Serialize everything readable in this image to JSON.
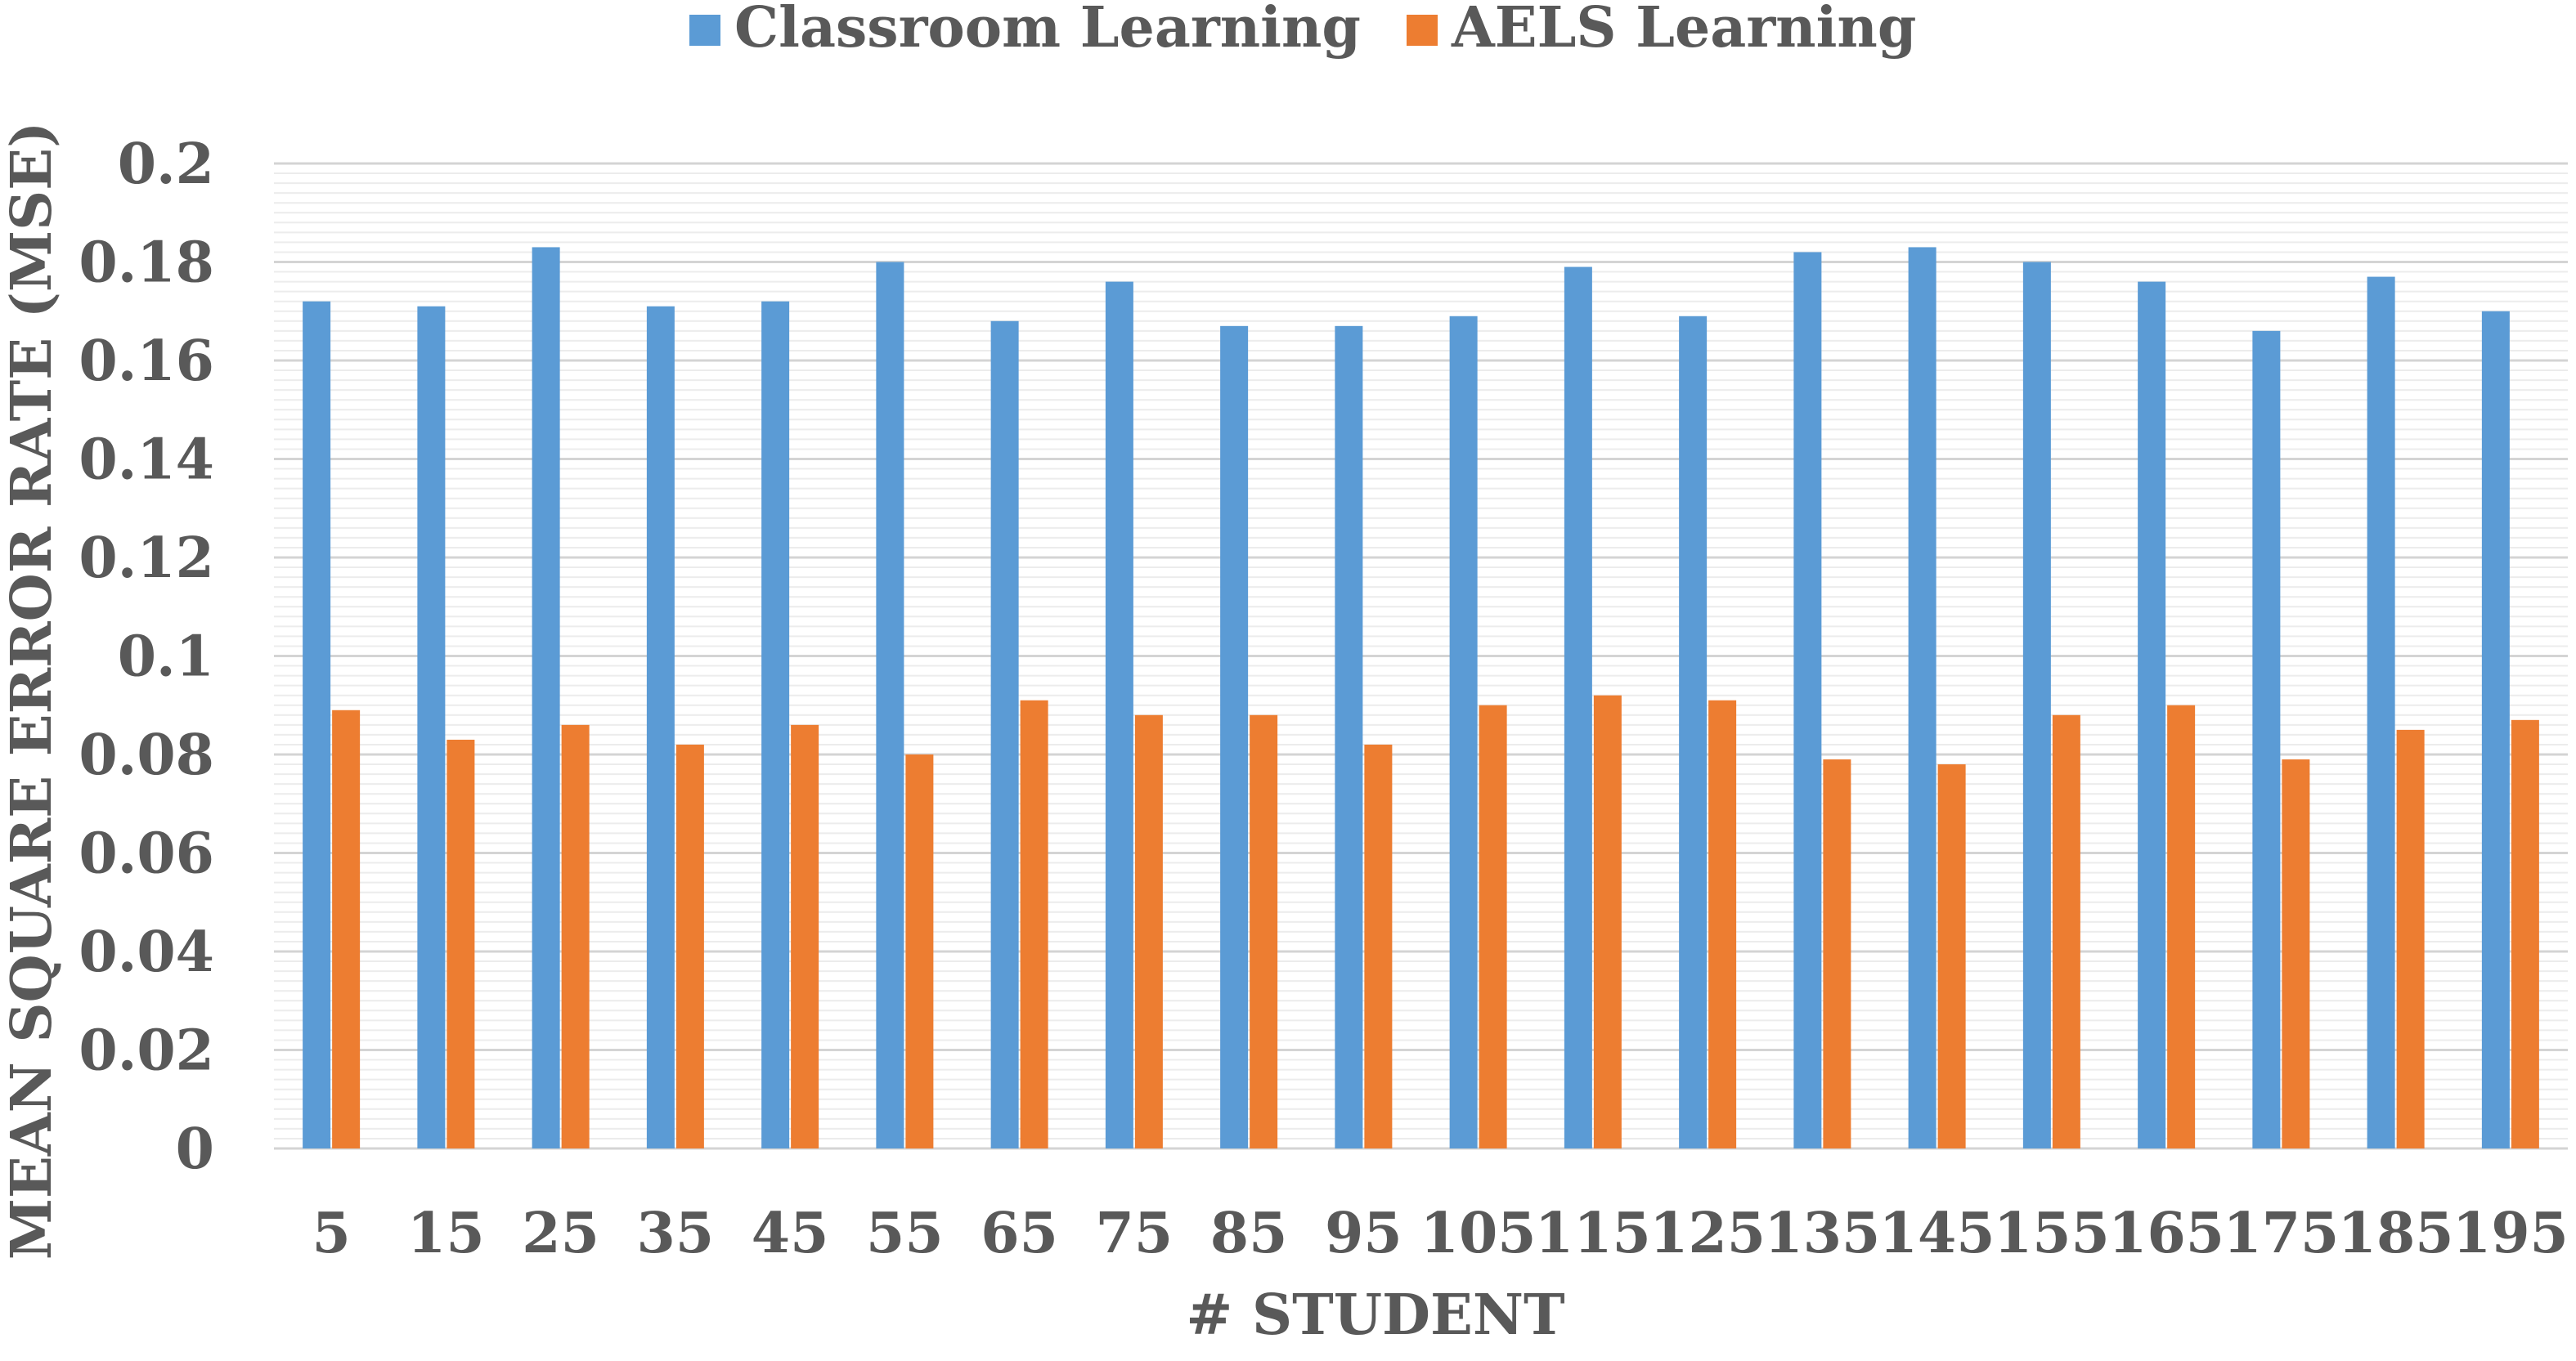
{
  "chart_data": {
    "type": "bar",
    "title": "",
    "xlabel": "# STUDENT",
    "ylabel": "MEAN SQUARE ERROR RATE (MSE)",
    "ylim": [
      0,
      0.2
    ],
    "y_ticks": [
      "0",
      "0.02",
      "0.04",
      "0.06",
      "0.08",
      "0.1",
      "0.12",
      "0.14",
      "0.16",
      "0.18",
      "0.2"
    ],
    "grid": true,
    "legend_position": "top-center",
    "categories": [
      "5",
      "15",
      "25",
      "35",
      "45",
      "55",
      "65",
      "75",
      "85",
      "95",
      "105",
      "115",
      "125",
      "135",
      "145",
      "155",
      "165",
      "175",
      "185",
      "195"
    ],
    "series": [
      {
        "name": "Classroom Learning",
        "color": "#5b9bd5",
        "values": [
          0.172,
          0.171,
          0.183,
          0.171,
          0.172,
          0.18,
          0.168,
          0.176,
          0.167,
          0.167,
          0.169,
          0.179,
          0.169,
          0.182,
          0.183,
          0.18,
          0.176,
          0.166,
          0.177,
          0.17
        ]
      },
      {
        "name": "AELS Learning",
        "color": "#ed7d31",
        "values": [
          0.089,
          0.083,
          0.086,
          0.082,
          0.086,
          0.08,
          0.091,
          0.088,
          0.088,
          0.082,
          0.09,
          0.092,
          0.091,
          0.079,
          0.078,
          0.088,
          0.09,
          0.079,
          0.085,
          0.087
        ]
      }
    ]
  }
}
